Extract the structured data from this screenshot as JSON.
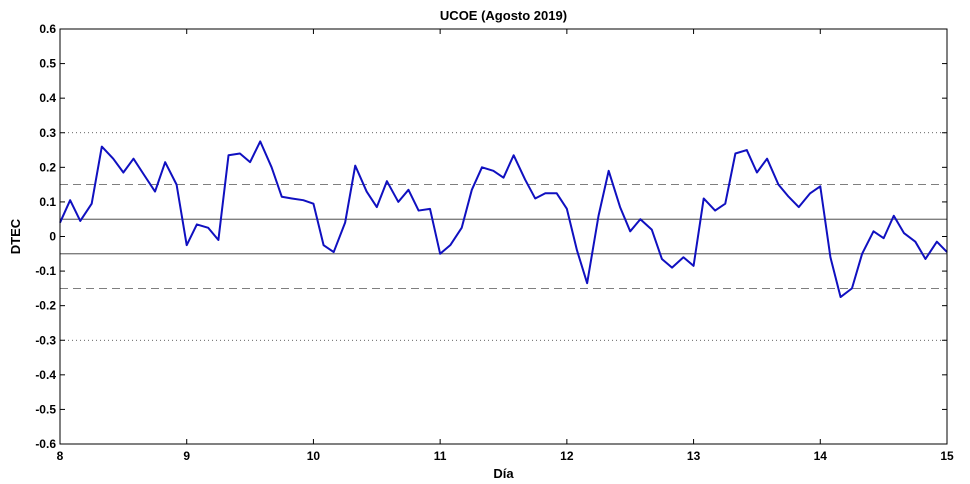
{
  "chart_data": {
    "type": "line",
    "title": "UCOE (Agosto 2019)",
    "xlabel": "Día",
    "ylabel": "DTEC",
    "xlim": [
      8,
      15
    ],
    "ylim": [
      -0.6,
      0.6
    ],
    "x_ticks": [
      8,
      9,
      10,
      11,
      12,
      13,
      14,
      15
    ],
    "x_tick_labels": [
      "8",
      "9",
      "10",
      "11",
      "12",
      "13",
      "14",
      "15"
    ],
    "y_ticks": [
      -0.6,
      -0.5,
      -0.4,
      -0.3,
      -0.2,
      -0.1,
      0,
      0.1,
      0.2,
      0.3,
      0.4,
      0.5,
      0.6
    ],
    "y_tick_labels": [
      "-0.6",
      "-0.5",
      "-0.4",
      "-0.3",
      "-0.2",
      "-0.1",
      "0",
      "0.1",
      "0.2",
      "0.3",
      "0.4",
      "0.5",
      "0.6"
    ],
    "grid": false,
    "legend": "none",
    "reference_lines": [
      {
        "y": 0.3,
        "style": "dotted"
      },
      {
        "y": 0.15,
        "style": "dashed"
      },
      {
        "y": 0.05,
        "style": "solid"
      },
      {
        "y": -0.05,
        "style": "solid"
      },
      {
        "y": -0.15,
        "style": "dashed"
      },
      {
        "y": -0.3,
        "style": "dotted"
      }
    ],
    "series": [
      {
        "color": "#1010c0",
        "x": [
          8.0,
          8.08,
          8.16,
          8.25,
          8.33,
          8.42,
          8.5,
          8.58,
          8.66,
          8.75,
          8.83,
          8.92,
          9.0,
          9.08,
          9.17,
          9.25,
          9.33,
          9.42,
          9.5,
          9.58,
          9.67,
          9.75,
          9.83,
          9.92,
          10.0,
          10.08,
          10.16,
          10.25,
          10.33,
          10.42,
          10.5,
          10.58,
          10.67,
          10.75,
          10.83,
          10.92,
          11.0,
          11.08,
          11.17,
          11.25,
          11.33,
          11.42,
          11.5,
          11.58,
          11.67,
          11.75,
          11.83,
          11.92,
          12.0,
          12.08,
          12.16,
          12.25,
          12.33,
          12.42,
          12.5,
          12.58,
          12.67,
          12.75,
          12.83,
          12.92,
          13.0,
          13.08,
          13.17,
          13.25,
          13.33,
          13.42,
          13.5,
          13.58,
          13.67,
          13.75,
          13.83,
          13.92,
          14.0,
          14.08,
          14.16,
          14.25,
          14.33,
          14.42,
          14.5,
          14.58,
          14.66,
          14.75,
          14.83,
          14.92,
          15.0
        ],
        "y": [
          0.04,
          0.105,
          0.045,
          0.095,
          0.26,
          0.225,
          0.185,
          0.225,
          0.18,
          0.13,
          0.215,
          0.15,
          -0.025,
          0.035,
          0.025,
          -0.01,
          0.235,
          0.24,
          0.215,
          0.275,
          0.2,
          0.115,
          0.11,
          0.105,
          0.095,
          -0.025,
          -0.045,
          0.04,
          0.205,
          0.13,
          0.085,
          0.16,
          0.1,
          0.135,
          0.075,
          0.08,
          -0.05,
          -0.025,
          0.025,
          0.135,
          0.2,
          0.19,
          0.17,
          0.235,
          0.165,
          0.11,
          0.125,
          0.125,
          0.08,
          -0.04,
          -0.135,
          0.06,
          0.19,
          0.085,
          0.015,
          0.05,
          0.02,
          -0.065,
          -0.09,
          -0.06,
          -0.085,
          0.11,
          0.075,
          0.095,
          0.24,
          0.25,
          0.185,
          0.225,
          0.15,
          0.115,
          0.085,
          0.125,
          0.145,
          -0.06,
          -0.175,
          -0.15,
          -0.05,
          0.015,
          -0.005,
          0.06,
          0.01,
          -0.015,
          -0.065,
          -0.015,
          -0.045
        ]
      }
    ]
  }
}
